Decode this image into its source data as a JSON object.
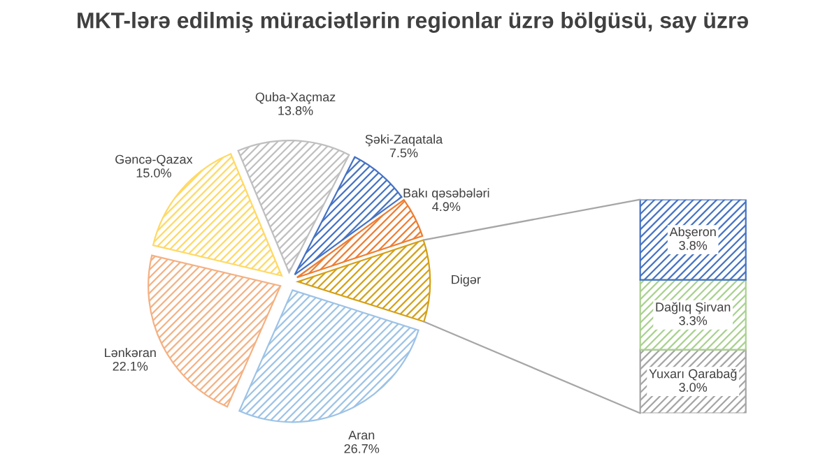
{
  "chart_data": [
    {
      "type": "pie",
      "title": "MKT-lərə edilmiş müraciətlərin regionlar üzrə bölgüsü, say üzrə",
      "categories": [
        "Şəki-Zaqatala",
        "Bakı qəsəbələri",
        "Digər",
        "Aran",
        "Lənkəran",
        "Gəncə-Qazax",
        "Quba-Xaçmaz"
      ],
      "values": [
        7.5,
        4.9,
        10.0,
        26.7,
        22.1,
        15.0,
        13.8
      ],
      "colors": [
        "#4472c4",
        "#ed7d31",
        "#d4a017",
        "#9dc3e6",
        "#f4b183",
        "#ffd966",
        "#bfbfbf"
      ],
      "value_labels": [
        "7.5%",
        "4.9%",
        null,
        "26.7%",
        "22.1%",
        "15.0%",
        "13.8%"
      ]
    },
    {
      "type": "bar",
      "stacked": true,
      "categories": [
        null
      ],
      "series": [
        {
          "name": "Yuxarı Qarabağ",
          "color": "#a5a5a5",
          "values": [
            3.0
          ],
          "value_labels": [
            "3.0%"
          ]
        },
        {
          "name": "Dağlıq Şirvan",
          "color": "#a9d18e",
          "values": [
            3.3
          ],
          "value_labels": [
            "3.3%"
          ]
        },
        {
          "name": "Abşeron",
          "color": "#4472c4",
          "values": [
            3.8
          ],
          "value_labels": [
            "3.8%"
          ]
        }
      ]
    }
  ]
}
